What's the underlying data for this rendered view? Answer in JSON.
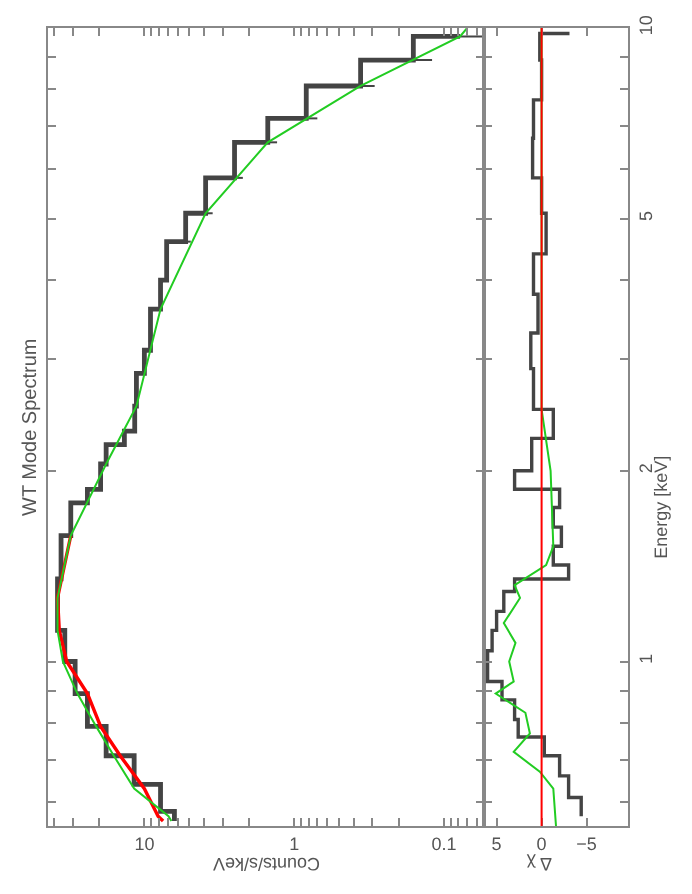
{
  "chart_data": [
    {
      "type": "line",
      "title": "WT Mode Spectrum",
      "xlabel": "Counts/s/keV",
      "orientation": "horizontal",
      "log": "xy",
      "marker": "none",
      "tick_labels": "x",
      "xlim": [
        44,
        0.054
      ],
      "xticks": [
        {
          "value": 40,
          "label": null
        },
        {
          "value": 30,
          "label": null
        },
        {
          "value": 20,
          "label": null
        },
        10,
        {
          "value": 9,
          "label": null
        },
        {
          "value": 8,
          "label": null
        },
        {
          "value": 7,
          "label": null
        },
        {
          "value": 6,
          "label": null
        },
        {
          "value": 5,
          "label": null
        },
        {
          "value": 4,
          "label": null
        },
        {
          "value": 3,
          "label": null
        },
        {
          "value": 2,
          "label": null
        },
        1,
        {
          "value": 0.9,
          "label": null
        },
        {
          "value": 0.8,
          "label": null
        },
        {
          "value": 0.7,
          "label": null
        },
        {
          "value": 0.6,
          "label": null
        },
        {
          "value": 0.5,
          "label": null
        },
        {
          "value": 0.4,
          "label": null
        },
        {
          "value": 0.3,
          "label": null
        },
        {
          "value": 0.2,
          "label": null
        },
        0.1,
        {
          "value": 0.09,
          "label": null
        },
        {
          "value": 0.08,
          "label": null
        },
        {
          "value": 0.07,
          "label": null
        },
        {
          "value": 0.06,
          "label": null
        }
      ],
      "ylim": [
        0.55,
        10
      ],
      "yticks": [
        {
          "value": 0.6,
          "label": null
        },
        {
          "value": 0.7,
          "label": null
        },
        {
          "value": 0.8,
          "label": null
        },
        {
          "value": 0.9,
          "label": null
        },
        {
          "value": 1,
          "label": null
        },
        {
          "value": 2,
          "label": null
        },
        {
          "value": 3,
          "label": null
        },
        {
          "value": 4,
          "label": null
        },
        {
          "value": 5,
          "label": null
        },
        {
          "value": 6,
          "label": null
        },
        {
          "value": 7,
          "label": null
        },
        {
          "value": 8,
          "label": null
        },
        {
          "value": 9,
          "label": null
        },
        {
          "value": 10,
          "label": null
        }
      ],
      "series": [
        {
          "type": "step",
          "color": "#444444",
          "x": [
            0.56,
            0.58,
            0.64,
            0.71,
            0.79,
            0.89,
            1.0,
            1.12,
            1.26,
            1.35,
            1.58,
            1.78,
            1.87,
            2.05,
            2.2,
            2.31,
            2.53,
            2.85,
            3.1,
            3.6,
            4.0,
            4.6,
            5.1,
            5.8,
            6.6,
            7.2,
            8.1,
            8.9,
            9.7
          ],
          "values": [
            6.3,
            7.8,
            11.7,
            18,
            24,
            29,
            34,
            38,
            38,
            36,
            31,
            24,
            19.6,
            18,
            13.6,
            11.6,
            11.3,
            10,
            9.1,
            7.8,
            7.1,
            5.3,
            3.9,
            2.5,
            1.5,
            0.83,
            0.36,
            0.16,
            0.078
          ],
          "errors": [
            null,
            null,
            null,
            null,
            null,
            null,
            null,
            null,
            null,
            null,
            null,
            null,
            null,
            null,
            null,
            null,
            null,
            null,
            null,
            null,
            null,
            [
              4.9,
              5.7
            ],
            [
              3.5,
              4.3
            ],
            [
              2.2,
              2.8
            ],
            [
              1.3,
              1.7
            ],
            [
              0.7,
              1.0
            ],
            [
              0.29,
              0.44
            ],
            [
              0.12,
              0.2
            ],
            [
              0.055,
              0.1
            ]
          ]
        },
        {
          "color": "#ff0000",
          "x": [
            0.56,
            0.57,
            0.63,
            0.71,
            0.79,
            0.89,
            1.0,
            1.12,
            1.26,
            1.58
          ],
          "values": [
            7.5,
            8.1,
            10,
            14.5,
            19.6,
            24,
            33,
            37,
            38,
            31
          ]
        },
        {
          "color": "#22cc22",
          "x": [
            0.56,
            0.57,
            0.63,
            0.71,
            0.79,
            0.89,
            1.0,
            1.12,
            1.26,
            1.58,
            2.05,
            2.53,
            3.6,
            5.1,
            6.6,
            8.1,
            9.7,
            10
          ],
          "values": [
            6.6,
            6.9,
            11.7,
            16,
            21,
            28,
            35,
            38,
            38,
            31,
            18,
            11.3,
            7.8,
            3.9,
            1.5,
            0.36,
            0.078,
            0.07
          ]
        }
      ]
    },
    {
      "type": "step",
      "xlabel": "Δ χ",
      "ylabel": "Energy [keV]",
      "orientation": "horizontal",
      "log": "y",
      "marker": "none",
      "xlim": [
        6.4,
        -9.6
      ],
      "xticks": [
        5,
        0,
        {
          "value": -5,
          "label": "−5"
        }
      ],
      "ylim": [
        0.55,
        10
      ],
      "yticks": [
        {
          "value": 0.6,
          "label": null
        },
        {
          "value": 0.7,
          "label": null
        },
        {
          "value": 0.8,
          "label": null
        },
        {
          "value": 0.9,
          "label": null
        },
        1,
        2,
        {
          "value": 3,
          "label": null
        },
        {
          "value": 4,
          "label": null
        },
        5,
        {
          "value": 6,
          "label": null
        },
        {
          "value": 7,
          "label": null
        },
        {
          "value": 8,
          "label": null
        },
        {
          "value": 9,
          "label": null
        },
        10
      ],
      "ref_lines": [
        {
          "axis": "x",
          "value": 0,
          "color": "#ff0000"
        }
      ],
      "series": [
        {
          "color": "#444444",
          "x": [
            0.57,
            0.61,
            0.66,
            0.71,
            0.76,
            0.81,
            0.87,
            0.93,
            1.0,
            1.04,
            1.12,
            1.2,
            1.29,
            1.35,
            1.42,
            1.52,
            1.63,
            1.75,
            1.87,
            2.0,
            2.25,
            2.5,
            2.9,
            3.3,
            3.8,
            4.4,
            5.1,
            5.8,
            6.7,
            7.7,
            8.9,
            9.8
          ],
          "values": [
            -4.4,
            -3,
            -2,
            -0.3,
            2.6,
            3,
            4.4,
            6,
            6,
            5.5,
            5,
            4.2,
            3,
            -3,
            -1.3,
            -2.2,
            -1.3,
            -2,
            3,
            1.1,
            -1.3,
            0.9,
            1.2,
            0.4,
            0.9,
            -0.5,
            0,
            1,
            0.9,
            0,
            0.2,
            -3.1
          ]
        },
        {
          "type": "line",
          "color": "#22cc22",
          "x": [
            0.55,
            0.63,
            0.67,
            0.72,
            0.77,
            0.83,
            0.89,
            0.93,
            1.0,
            1.07,
            1.15,
            1.26,
            1.32,
            1.42,
            1.52,
            2.0,
            2.5,
            10
          ],
          "values": [
            -1.6,
            -1.3,
            0.2,
            3.1,
            1.3,
            1.8,
            5.1,
            3.1,
            3.6,
            2.9,
            4.2,
            2.4,
            3,
            -0.5,
            -1.3,
            -1,
            0,
            0
          ]
        }
      ]
    }
  ]
}
